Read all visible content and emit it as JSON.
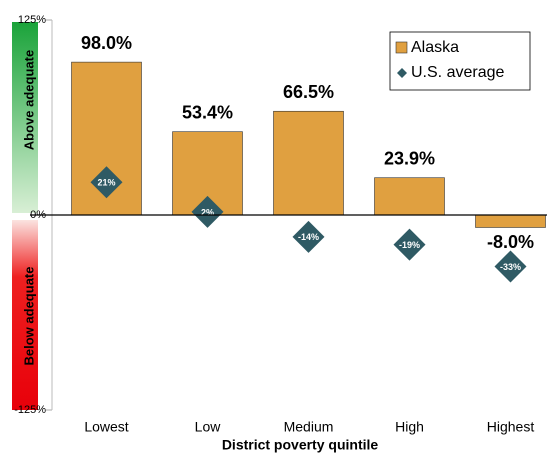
{
  "chart_data": {
    "type": "bar",
    "x_label": "District poverty quintile",
    "categories": [
      "Lowest",
      "Low",
      "Medium",
      "High",
      "Highest"
    ],
    "series": [
      {
        "name": "Alaska",
        "color": "#e0a040",
        "values": [
          98.0,
          53.4,
          66.5,
          23.9,
          -8.0
        ],
        "value_labels": [
          "98.0%",
          "53.4%",
          "66.5%",
          "23.9%",
          "-8.0%"
        ]
      },
      {
        "name": "U.S. average",
        "color": "#2f5a64",
        "marker": "diamond",
        "values": [
          21,
          2,
          -14,
          -19,
          -33
        ],
        "value_labels": [
          "21%",
          "2%",
          "-14%",
          "-19%",
          "-33%"
        ]
      }
    ],
    "ylim": [
      -125,
      125
    ],
    "yticks": [
      {
        "value": -125,
        "label": "-125%"
      },
      {
        "value": 0,
        "label": "0%"
      },
      {
        "value": 125,
        "label": "125%"
      }
    ],
    "annotations": [
      "Above adequate",
      "Below adequate"
    ],
    "legend": "upper right"
  }
}
